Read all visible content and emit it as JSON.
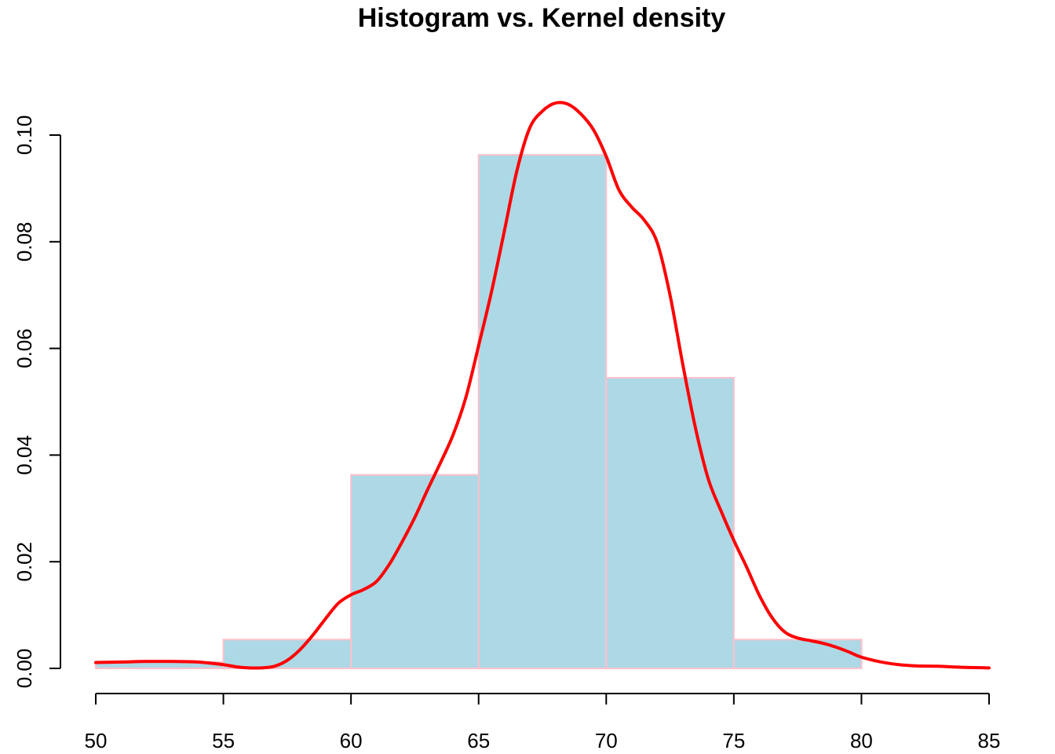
{
  "chart_data": {
    "type": "bar",
    "title": "Histogram vs. Kernel density",
    "xlabel": "",
    "ylabel": "",
    "xlim": [
      50,
      85
    ],
    "ylim": [
      0,
      0.105
    ],
    "x_ticks": [
      "50",
      "55",
      "60",
      "65",
      "70",
      "75",
      "80",
      "85"
    ],
    "y_ticks": [
      "0.00",
      "0.02",
      "0.04",
      "0.06",
      "0.08",
      "0.10"
    ],
    "grid": false,
    "legend": "none",
    "histogram": {
      "bin_edges": [
        50,
        55,
        60,
        65,
        70,
        75,
        80
      ],
      "densities": [
        0.0012,
        0.0054,
        0.0363,
        0.0963,
        0.0545,
        0.0054
      ],
      "fill_color": "#add8e6",
      "border_color": "#ffc0cb"
    },
    "density_curve": {
      "color": "#ff0000",
      "x": [
        50,
        51,
        52,
        53,
        54,
        55,
        55.5,
        56,
        56.5,
        57,
        57.5,
        58,
        58.5,
        59,
        59.5,
        60,
        60.5,
        61,
        61.5,
        62,
        62.5,
        63,
        63.5,
        64,
        64.5,
        65,
        65.5,
        66,
        66.5,
        67,
        67.5,
        68,
        68.5,
        69,
        69.5,
        70,
        70.5,
        71,
        71.5,
        72,
        72.5,
        73,
        73.5,
        74,
        74.5,
        75,
        75.5,
        76,
        76.5,
        77,
        77.5,
        78,
        78.5,
        79,
        79.5,
        80,
        81,
        82,
        83,
        84,
        85
      ],
      "y": [
        0.0011,
        0.0012,
        0.0013,
        0.0013,
        0.0012,
        0.0007,
        0.0003,
        0.0001,
        0.0001,
        0.0004,
        0.0015,
        0.0035,
        0.0062,
        0.0093,
        0.0122,
        0.0138,
        0.0148,
        0.0163,
        0.0195,
        0.0237,
        0.0283,
        0.0335,
        0.0385,
        0.0438,
        0.0508,
        0.0605,
        0.0705,
        0.0818,
        0.0933,
        0.1013,
        0.1045,
        0.106,
        0.1058,
        0.104,
        0.101,
        0.096,
        0.0897,
        0.0865,
        0.084,
        0.0798,
        0.07,
        0.057,
        0.045,
        0.0355,
        0.0295,
        0.024,
        0.019,
        0.0137,
        0.0095,
        0.0068,
        0.0057,
        0.0052,
        0.0047,
        0.004,
        0.0031,
        0.0021,
        0.001,
        0.0005,
        0.0004,
        0.0002,
        0.0001
      ]
    }
  }
}
